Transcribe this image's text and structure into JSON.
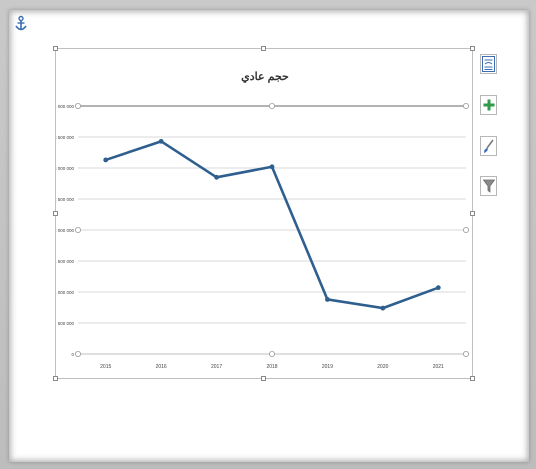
{
  "chart_data": {
    "type": "line",
    "title": "حجم عادي",
    "categories": [
      "2015",
      "2016",
      "2017",
      "2018",
      "2019",
      "2020",
      "2021"
    ],
    "series": [
      {
        "values": [
          3130000,
          3430000,
          2850000,
          3020000,
          880000,
          740000,
          1070000
        ]
      }
    ],
    "ylim": [
      0,
      4000000
    ],
    "yticks": [
      0,
      500000,
      1000000,
      1500000,
      2000000,
      2500000,
      3000000,
      3500000,
      4000000
    ],
    "ytick_labels": [
      "0",
      "500 000",
      "1 000 000",
      "1 500 000",
      "2 000 000",
      "2 500 000",
      "3 000 000",
      "3 500 000",
      "4 000 000"
    ],
    "grid": true,
    "legend": "none",
    "line_color": "#2f5f8f"
  },
  "icons": {
    "anchor": "anchor-icon",
    "layout": "chart-layout-icon",
    "elements": "chart-elements-plus-icon",
    "styles": "chart-styles-brush-icon",
    "filters": "chart-filters-funnel-icon"
  }
}
